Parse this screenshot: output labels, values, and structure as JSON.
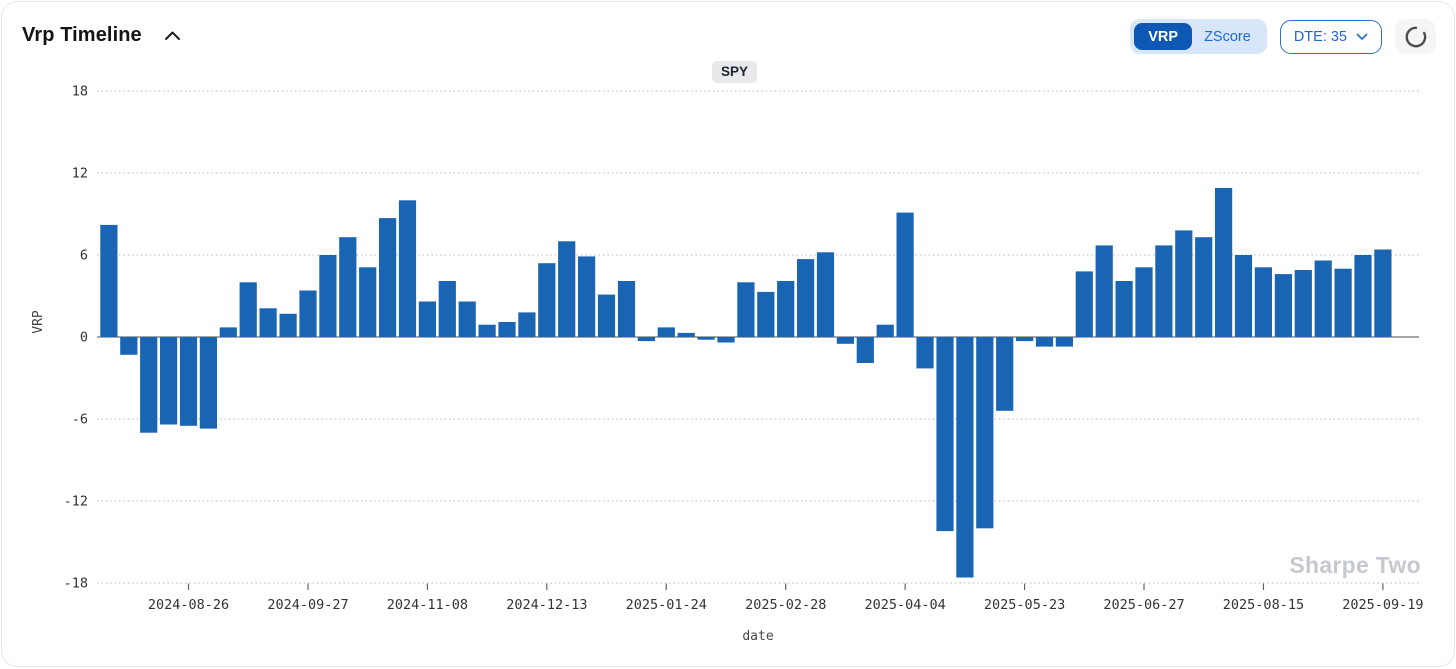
{
  "header": {
    "title": "Vrp Timeline",
    "collapse_icon": "chevron-up"
  },
  "controls": {
    "vrp_label": "VRP",
    "zscore_label": "ZScore",
    "dte_label": "DTE: 35",
    "refresh_icon": "loading-spinner"
  },
  "legend": {
    "symbol": "SPY"
  },
  "watermark": "Sharpe Two",
  "colors": {
    "bar": "#1a64b4",
    "toggle_selected_bg": "#0d57b5",
    "toggle_bg": "#d8e6fa",
    "accent_blue": "#2064d9",
    "grid": "#c6c6c6",
    "zero_line": "#a6a6a6",
    "tick_text": "#333333",
    "watermark": "#c5c8ce",
    "badge_bg": "#e8e9eb"
  },
  "chart_data": {
    "type": "bar",
    "series_name": "SPY",
    "title": "",
    "xlabel": "date",
    "ylabel": "VRP",
    "yticks": [
      18,
      12,
      6,
      0,
      -6,
      -12,
      -18
    ],
    "ylim": [
      -18.6,
      18.6
    ],
    "grid": "dotted-horizontal",
    "legend_position": "top-center",
    "values": [
      8.2,
      -1.3,
      -7.0,
      -6.4,
      -6.5,
      -6.7,
      0.7,
      4.0,
      2.1,
      1.7,
      3.4,
      6.0,
      7.3,
      5.1,
      8.7,
      10.0,
      2.6,
      4.1,
      2.6,
      0.9,
      1.1,
      1.8,
      5.4,
      7.0,
      5.9,
      3.1,
      4.1,
      -0.3,
      0.7,
      0.3,
      -0.2,
      -0.4,
      4.0,
      3.3,
      4.1,
      5.7,
      6.2,
      -0.5,
      -1.9,
      0.9,
      9.1,
      -2.3,
      -14.2,
      -17.6,
      -14.0,
      -5.4,
      -0.3,
      -0.7,
      -0.7,
      4.8,
      6.7,
      4.1,
      5.1,
      6.7,
      7.8,
      7.3,
      10.9,
      6.0,
      5.1,
      4.6,
      4.9,
      5.6,
      5.0,
      6.0,
      6.4
    ],
    "x_tick_labels": [
      "2024-08-26",
      "2024-09-27",
      "2024-11-08",
      "2024-12-13",
      "2025-01-24",
      "2025-02-28",
      "2025-04-04",
      "2025-05-23",
      "2025-06-27",
      "2025-08-15",
      "2025-09-19"
    ],
    "x_tick_bar_indices": [
      4,
      10,
      16,
      22,
      28,
      34,
      40,
      46,
      52,
      58,
      64
    ]
  }
}
